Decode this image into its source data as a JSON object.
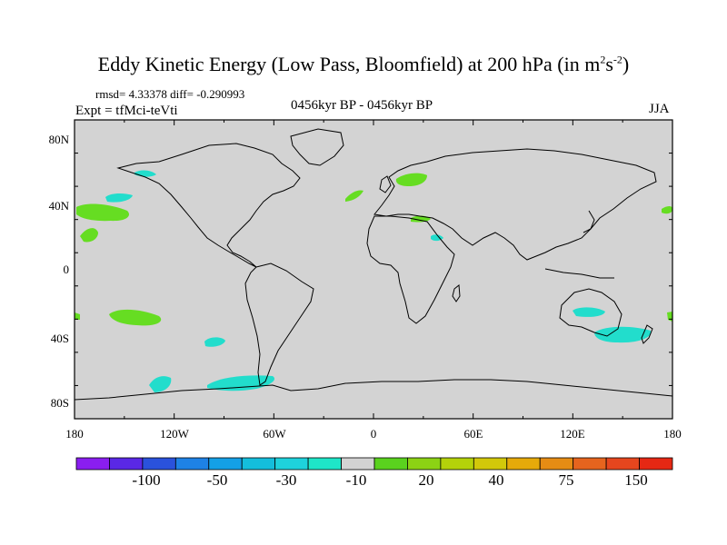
{
  "header": {
    "title_main": "Eddy Kinetic Energy (Low Pass, Bloomfield) at 200 hPa (in m",
    "title_sup1": "2",
    "title_mid": "s",
    "title_sup2": "-2",
    "title_end": ")",
    "stats": "rmsd= 4.33378 diff= -0.290993",
    "experiment": "Expt = tfMci-teVti",
    "period": "0456kyr BP - 0456kyr BP",
    "season": "JJA"
  },
  "axes": {
    "lat_ticks": [
      "80N",
      "40N",
      "0",
      "40S",
      "80S"
    ],
    "lon_ticks": [
      "180",
      "120W",
      "60W",
      "0",
      "60E",
      "120E",
      "180"
    ]
  },
  "colors": {
    "land_ocean_fill": "#d3d3d3",
    "coastline": "#000000",
    "anomaly_positive": "#66dd22",
    "anomaly_negative": "#22ddcc"
  },
  "colorbar": {
    "colors": [
      "#8a1ef0",
      "#5a28e6",
      "#2a52dc",
      "#1e82e6",
      "#14a0e6",
      "#14bedc",
      "#1ed2dc",
      "#1ee6c8",
      "#d3d3d3",
      "#5ad21e",
      "#8cd214",
      "#b4d20a",
      "#d2c80a",
      "#e6aa0a",
      "#e68c14",
      "#e6641e",
      "#e6461e",
      "#e62814"
    ],
    "labels": [
      "-100",
      "-50",
      "-30",
      "-10",
      "20",
      "40",
      "75",
      "150"
    ]
  }
}
